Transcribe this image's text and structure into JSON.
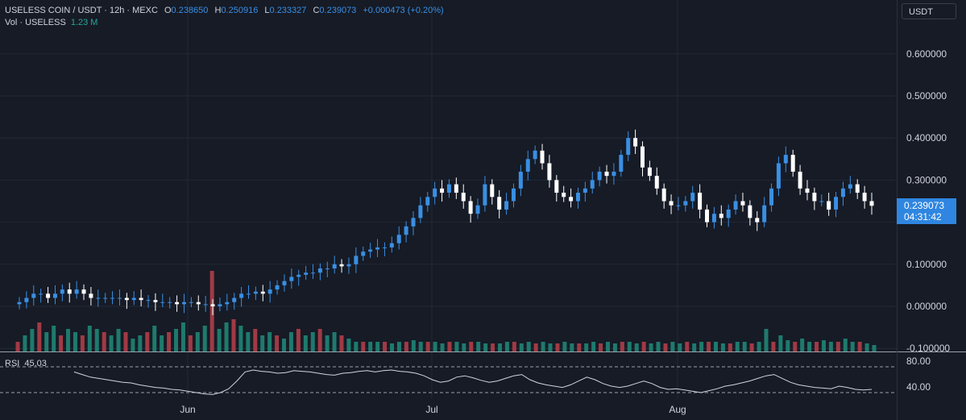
{
  "legend": {
    "title": "USELESS COIN / USDT · 12h · MEXC",
    "open_label": "O",
    "open": "0.238650",
    "high_label": "H",
    "high": "0.250916",
    "low_label": "L",
    "low": "0.233327",
    "close_label": "C",
    "close": "0.239073",
    "change": "+0.000473 (+0.20%)",
    "vol_label": "Vol · USELESS",
    "vol_value": "1.23 M"
  },
  "currency": "USDT",
  "price_tag": {
    "price": "0.239073",
    "countdown": "04:31:42"
  },
  "rsi": {
    "label": "RSI",
    "value": "45.03",
    "levels": [
      "80.00",
      "40.00"
    ]
  },
  "colors": {
    "background": "#161b26",
    "grid": "#232936",
    "up": "#3a8fe3",
    "down": "#ffffff",
    "volume_up": "#1e7a6d",
    "volume_down": "#a03a44",
    "rsi_line": "#d1d4dc",
    "price_tag": "#2f86e0"
  },
  "chart_data": {
    "type": "candlestick",
    "price_axis": {
      "ticks": [
        "0.600000",
        "0.500000",
        "0.400000",
        "0.300000",
        "0.100000",
        "0.000000",
        "-0.100000"
      ],
      "range": [
        -0.1,
        0.64
      ]
    },
    "time_axis": {
      "ticks": [
        "Jun",
        "Jul",
        "Aug"
      ]
    },
    "ohlc_path": [
      0.01,
      0.02,
      0.03,
      0.03,
      0.02,
      0.03,
      0.04,
      0.03,
      0.04,
      0.03,
      0.02,
      0.02,
      0.02,
      0.02,
      0.02,
      0.015,
      0.02,
      0.015,
      0.015,
      0.01,
      0.01,
      0.01,
      0.005,
      0.01,
      0.01,
      0.005,
      0.005,
      0.0,
      0.005,
      0.01,
      0.02,
      0.03,
      0.03,
      0.035,
      0.03,
      0.04,
      0.05,
      0.06,
      0.07,
      0.075,
      0.08,
      0.08,
      0.09,
      0.09,
      0.1,
      0.095,
      0.1,
      0.12,
      0.13,
      0.135,
      0.14,
      0.14,
      0.15,
      0.17,
      0.19,
      0.21,
      0.24,
      0.26,
      0.28,
      0.27,
      0.29,
      0.27,
      0.25,
      0.22,
      0.24,
      0.29,
      0.26,
      0.23,
      0.25,
      0.28,
      0.32,
      0.35,
      0.37,
      0.34,
      0.3,
      0.27,
      0.26,
      0.25,
      0.27,
      0.28,
      0.3,
      0.32,
      0.31,
      0.32,
      0.36,
      0.4,
      0.38,
      0.33,
      0.31,
      0.28,
      0.25,
      0.24,
      0.24,
      0.25,
      0.27,
      0.23,
      0.2,
      0.22,
      0.21,
      0.23,
      0.25,
      0.24,
      0.21,
      0.2,
      0.24,
      0.28,
      0.34,
      0.36,
      0.32,
      0.28,
      0.27,
      0.25,
      0.25,
      0.23,
      0.26,
      0.28,
      0.29,
      0.27,
      0.25,
      0.239
    ],
    "volume_path": [
      0.3,
      0.5,
      0.7,
      0.9,
      0.6,
      0.8,
      0.5,
      0.7,
      0.6,
      0.5,
      0.8,
      0.7,
      0.6,
      0.5,
      0.7,
      0.6,
      0.4,
      0.5,
      0.6,
      0.8,
      0.5,
      0.6,
      0.7,
      0.9,
      0.5,
      0.6,
      0.8,
      2.5,
      0.7,
      0.9,
      1.0,
      0.8,
      0.6,
      0.7,
      0.5,
      0.6,
      0.5,
      0.4,
      0.6,
      0.7,
      0.5,
      0.6,
      0.7,
      0.5,
      0.6,
      0.5,
      0.4,
      0.3,
      0.3,
      0.3,
      0.3,
      0.3,
      0.25,
      0.3,
      0.3,
      0.35,
      0.3,
      0.3,
      0.3,
      0.25,
      0.3,
      0.3,
      0.25,
      0.3,
      0.3,
      0.25,
      0.25,
      0.25,
      0.3,
      0.3,
      0.25,
      0.3,
      0.25,
      0.3,
      0.25,
      0.25,
      0.3,
      0.25,
      0.25,
      0.25,
      0.3,
      0.25,
      0.3,
      0.25,
      0.3,
      0.3,
      0.25,
      0.3,
      0.25,
      0.3,
      0.25,
      0.3,
      0.25,
      0.3,
      0.25,
      0.3,
      0.3,
      0.3,
      0.25,
      0.25,
      0.3,
      0.3,
      0.25,
      0.3,
      0.7,
      0.3,
      0.5,
      0.35,
      0.3,
      0.4,
      0.3,
      0.3,
      0.35,
      0.3,
      0.3,
      0.4,
      0.3,
      0.3,
      0.25,
      0.2
    ],
    "rsi_path": [
      72,
      68,
      64,
      62,
      60,
      58,
      56,
      55,
      52,
      50,
      48,
      47,
      45,
      44,
      42,
      40,
      38,
      37,
      40,
      46,
      58,
      72,
      75,
      73,
      72,
      70,
      71,
      74,
      73,
      72,
      70,
      68,
      67,
      70,
      71,
      73,
      74,
      72,
      74,
      75,
      73,
      72,
      70,
      66,
      60,
      56,
      58,
      64,
      66,
      63,
      59,
      56,
      58,
      62,
      66,
      68,
      60,
      55,
      52,
      50,
      48,
      52,
      58,
      64,
      60,
      54,
      50,
      48,
      50,
      54,
      58,
      54,
      48,
      45,
      46,
      44,
      42,
      40,
      43,
      46,
      50,
      52,
      55,
      58,
      62,
      66,
      68,
      62,
      56,
      52,
      50,
      48,
      47,
      46,
      50,
      48,
      45,
      44,
      45
    ]
  }
}
